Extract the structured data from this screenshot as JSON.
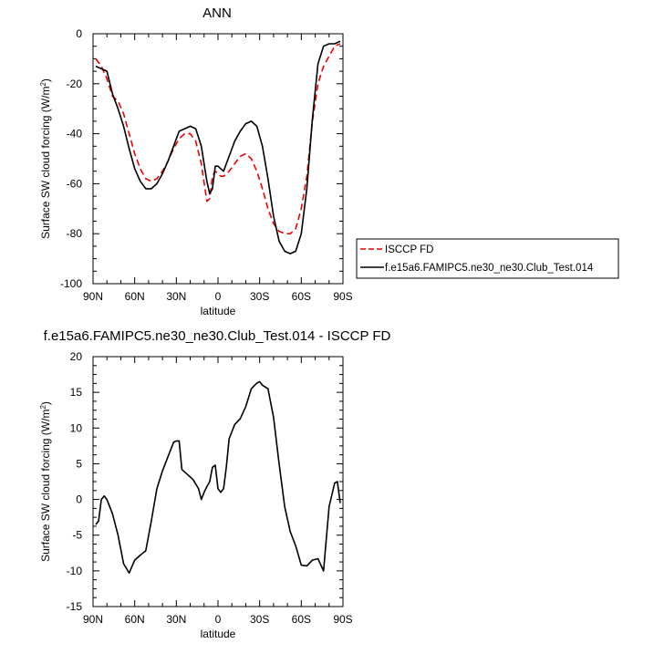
{
  "chart_data": [
    {
      "type": "line",
      "title": "ANN",
      "xlabel": "latitude",
      "ylabel": "Surface SW cloud forcing (W/m",
      "ylabel_sup": "2",
      "ylabel_end": ")",
      "xlim": [
        90,
        -90
      ],
      "ylim": [
        -100,
        0
      ],
      "xticks": [
        90,
        60,
        30,
        0,
        -30,
        -60,
        -90
      ],
      "xtick_labels": [
        "90N",
        "60N",
        "30N",
        "0",
        "30S",
        "60S",
        "90S"
      ],
      "yticks": [
        0,
        -20,
        -40,
        -60,
        -80,
        -100
      ],
      "ytick_labels": [
        "0",
        "-20",
        "-40",
        "-60",
        "-80",
        "-100"
      ],
      "legend_position": "right",
      "series": [
        {
          "name": "ISCCP FD",
          "color": "#ee0000",
          "dash": "dashed",
          "x": [
            88,
            84,
            80,
            76,
            72,
            68,
            64,
            60,
            56,
            52,
            48,
            44,
            40,
            36,
            32,
            28,
            24,
            20,
            16,
            12,
            8,
            6,
            4,
            2,
            0,
            -2,
            -4,
            -8,
            -12,
            -16,
            -20,
            -24,
            -28,
            -32,
            -36,
            -40,
            -44,
            -48,
            -52,
            -56,
            -60,
            -64,
            -68,
            -72,
            -76,
            -80,
            -84,
            -88
          ],
          "y": [
            -10,
            -13,
            -18,
            -25,
            -27,
            -32,
            -40,
            -48,
            -54,
            -58,
            -59,
            -58,
            -55,
            -51,
            -46,
            -42,
            -40,
            -40,
            -43,
            -52,
            -67,
            -66,
            -57,
            -55,
            -56,
            -57,
            -57,
            -55,
            -52,
            -49,
            -48,
            -50,
            -55,
            -62,
            -70,
            -76,
            -79,
            -80,
            -80,
            -78,
            -70,
            -57,
            -35,
            -20,
            -13,
            -9,
            -5,
            -4
          ]
        },
        {
          "name": "f.e15a6.FAMIPC5.ne30_ne30.Club_Test.014",
          "color": "#000000",
          "dash": "solid",
          "x": [
            88,
            84,
            80,
            76,
            72,
            68,
            64,
            60,
            56,
            52,
            48,
            44,
            40,
            36,
            32,
            28,
            24,
            20,
            16,
            12,
            8,
            6,
            4,
            2,
            0,
            -2,
            -4,
            -8,
            -12,
            -16,
            -20,
            -24,
            -28,
            -32,
            -36,
            -40,
            -44,
            -48,
            -52,
            -56,
            -60,
            -64,
            -68,
            -72,
            -76,
            -80,
            -84,
            -88
          ],
          "y": [
            -13,
            -14,
            -15,
            -24,
            -30,
            -37,
            -46,
            -54,
            -59,
            -62,
            -62,
            -60,
            -56,
            -51,
            -45,
            -39,
            -38,
            -37,
            -38,
            -45,
            -59,
            -64,
            -62,
            -53,
            -53,
            -54,
            -55,
            -49,
            -43,
            -39,
            -36,
            -35,
            -37,
            -45,
            -58,
            -73,
            -83,
            -87,
            -88,
            -87,
            -80,
            -62,
            -34,
            -12,
            -5,
            -4,
            -4,
            -3
          ]
        }
      ]
    },
    {
      "type": "line",
      "title": "f.e15a6.FAMIPC5.ne30_ne30.Club_Test.014 - ISCCP FD",
      "xlabel": "latitude",
      "ylabel": "Surface SW cloud forcing (W/m",
      "ylabel_sup": "2",
      "ylabel_end": ")",
      "xlim": [
        90,
        -90
      ],
      "ylim": [
        -15,
        20
      ],
      "xticks": [
        90,
        60,
        30,
        0,
        -30,
        -60,
        -90
      ],
      "xtick_labels": [
        "90N",
        "60N",
        "30N",
        "0",
        "30S",
        "60S",
        "90S"
      ],
      "yticks": [
        20,
        15,
        10,
        5,
        0,
        -5,
        -10,
        -15
      ],
      "ytick_labels": [
        "20",
        "15",
        "10",
        "5",
        "0",
        "-5",
        "-10",
        "-15"
      ],
      "series": [
        {
          "color": "#000000",
          "dash": "solid",
          "x": [
            88,
            86,
            84,
            82,
            80,
            76,
            72,
            68,
            64,
            60,
            56,
            52,
            48,
            44,
            40,
            36,
            32,
            30,
            28,
            26,
            22,
            18,
            14,
            12,
            10,
            8,
            6,
            4,
            2,
            0,
            -2,
            -4,
            -6,
            -8,
            -12,
            -16,
            -20,
            -24,
            -28,
            -30,
            -32,
            -36,
            -40,
            -44,
            -48,
            -52,
            -56,
            -60,
            -64,
            -68,
            -72,
            -76,
            -80,
            -84,
            -86,
            -88
          ],
          "y": [
            -3.5,
            -3,
            0,
            0.5,
            0,
            -2,
            -5,
            -9,
            -10.3,
            -8.5,
            -7.8,
            -7.2,
            -3,
            1.5,
            4,
            6,
            8,
            8.2,
            8.2,
            4.2,
            3.5,
            2.8,
            1.5,
            0,
            1,
            1.8,
            2.5,
            4.5,
            4.8,
            1.5,
            1,
            1.5,
            4.5,
            8.5,
            10.5,
            11.3,
            13,
            15.5,
            16.3,
            16.5,
            16,
            15.5,
            11.5,
            5,
            -1,
            -4.5,
            -6.5,
            -9.2,
            -9.3,
            -8.5,
            -8.3,
            -10,
            -1,
            2.3,
            2.5,
            -0.5
          ]
        }
      ]
    }
  ]
}
